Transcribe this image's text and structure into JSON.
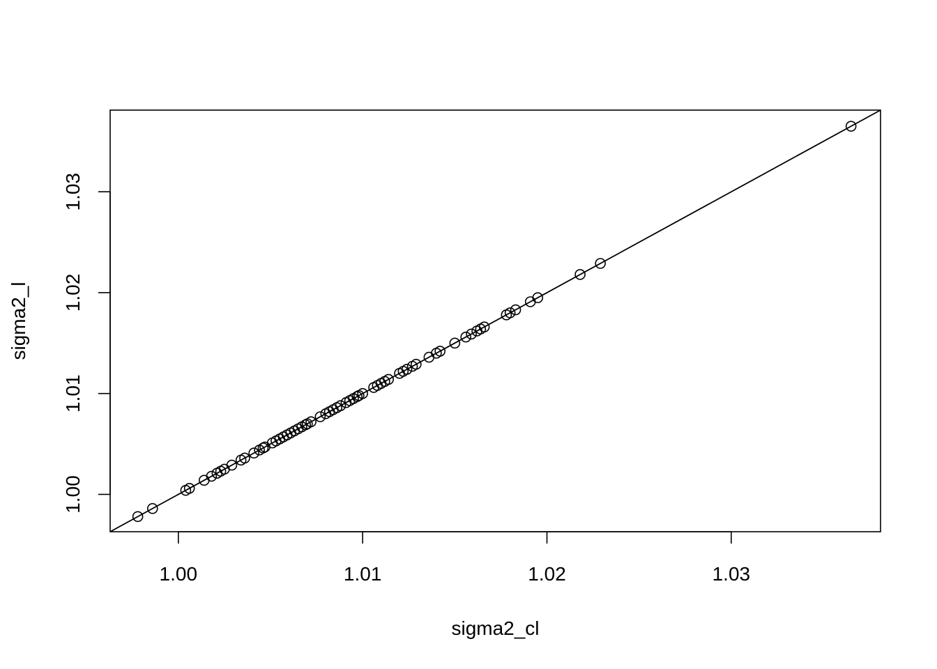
{
  "chart_data": {
    "type": "scatter",
    "xlabel": "sigma2_cl",
    "ylabel": "sigma2_l",
    "xlim": [
      0.9963,
      1.0381
    ],
    "ylim": [
      0.9963,
      1.0381
    ],
    "x_ticks": [
      1.0,
      1.01,
      1.02,
      1.03
    ],
    "x_tick_labels": [
      "1.00",
      "1.01",
      "1.02",
      "1.03"
    ],
    "y_ticks": [
      1.0,
      1.01,
      1.02,
      1.03
    ],
    "y_tick_labels": [
      "1.00",
      "1.01",
      "1.02",
      "1.03"
    ],
    "grid": false,
    "marker": "open-circle",
    "reference_line": {
      "type": "identity",
      "intercept": 0,
      "slope": 1
    },
    "series": [
      {
        "x": [
          0.9978,
          0.9986,
          1.0004,
          1.0006,
          1.0014,
          1.0018,
          1.0021,
          1.0023,
          1.0025,
          1.0029,
          1.0034,
          1.0036,
          1.0041,
          1.0044,
          1.0046,
          1.0047,
          1.0051,
          1.0053,
          1.0055,
          1.0057,
          1.0059,
          1.0061,
          1.0063,
          1.0065,
          1.0067,
          1.0069,
          1.007,
          1.0072,
          1.0077,
          1.008,
          1.0082,
          1.0084,
          1.0086,
          1.0088,
          1.0091,
          1.0093,
          1.0095,
          1.0097,
          1.0098,
          1.01,
          1.0106,
          1.0108,
          1.011,
          1.0112,
          1.0114,
          1.012,
          1.0122,
          1.0124,
          1.0127,
          1.0129,
          1.0136,
          1.014,
          1.0142,
          1.015,
          1.0156,
          1.0159,
          1.0162,
          1.0164,
          1.0166,
          1.0178,
          1.018,
          1.0183,
          1.0191,
          1.0195,
          1.0218,
          1.0229,
          1.0365
        ],
        "y": [
          0.9978,
          0.9986,
          1.0004,
          1.0006,
          1.0014,
          1.0018,
          1.0021,
          1.0023,
          1.0025,
          1.0029,
          1.0034,
          1.0036,
          1.0041,
          1.0044,
          1.0046,
          1.0047,
          1.0051,
          1.0053,
          1.0055,
          1.0057,
          1.0059,
          1.0061,
          1.0063,
          1.0065,
          1.0067,
          1.0069,
          1.007,
          1.0072,
          1.0077,
          1.008,
          1.0082,
          1.0084,
          1.0086,
          1.0088,
          1.0091,
          1.0093,
          1.0095,
          1.0097,
          1.0098,
          1.01,
          1.0106,
          1.0108,
          1.011,
          1.0112,
          1.0114,
          1.012,
          1.0122,
          1.0124,
          1.0127,
          1.0129,
          1.0136,
          1.014,
          1.0142,
          1.015,
          1.0156,
          1.0159,
          1.0162,
          1.0164,
          1.0166,
          1.0178,
          1.018,
          1.0183,
          1.0191,
          1.0195,
          1.0218,
          1.0229,
          1.0365
        ]
      }
    ],
    "colors": {
      "points": "#000000",
      "line": "#000000",
      "frame": "#000000",
      "background": "#ffffff"
    }
  }
}
